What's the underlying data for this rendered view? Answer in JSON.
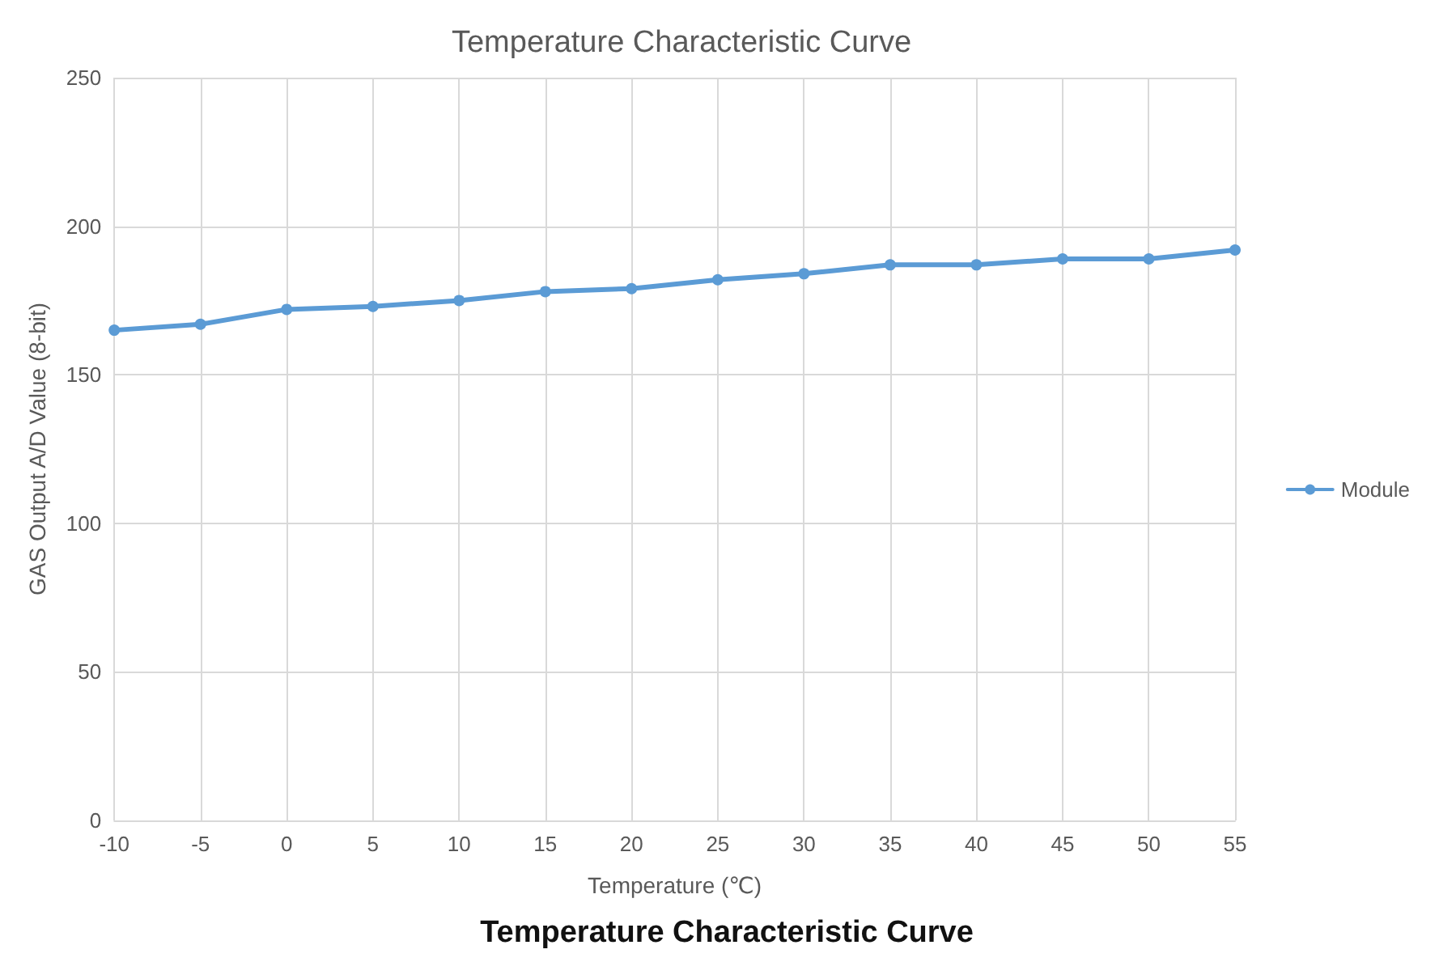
{
  "chart_data": {
    "type": "line",
    "title": "Temperature Characteristic Curve",
    "xlabel": "Temperature (℃)",
    "ylabel": "GAS Output A/D Value (8-bit)",
    "x": [
      -10,
      -5,
      0,
      5,
      10,
      15,
      20,
      25,
      30,
      35,
      40,
      45,
      50,
      55
    ],
    "series": [
      {
        "name": "Module",
        "color": "#5b9bd5",
        "values": [
          165,
          167,
          172,
          173,
          175,
          178,
          179,
          182,
          184,
          187,
          187,
          189,
          189,
          192
        ]
      }
    ],
    "xlim": [
      -10,
      55
    ],
    "xticks": [
      -10,
      -5,
      0,
      5,
      10,
      15,
      20,
      25,
      30,
      35,
      40,
      45,
      50,
      55
    ],
    "ylim": [
      0,
      250
    ],
    "yticks": [
      0,
      50,
      100,
      150,
      200,
      250
    ],
    "grid": true,
    "legend": "right",
    "marker": "circle",
    "line_style": "solid",
    "annotations": [
      "Temperature Characteristic Curve"
    ]
  }
}
